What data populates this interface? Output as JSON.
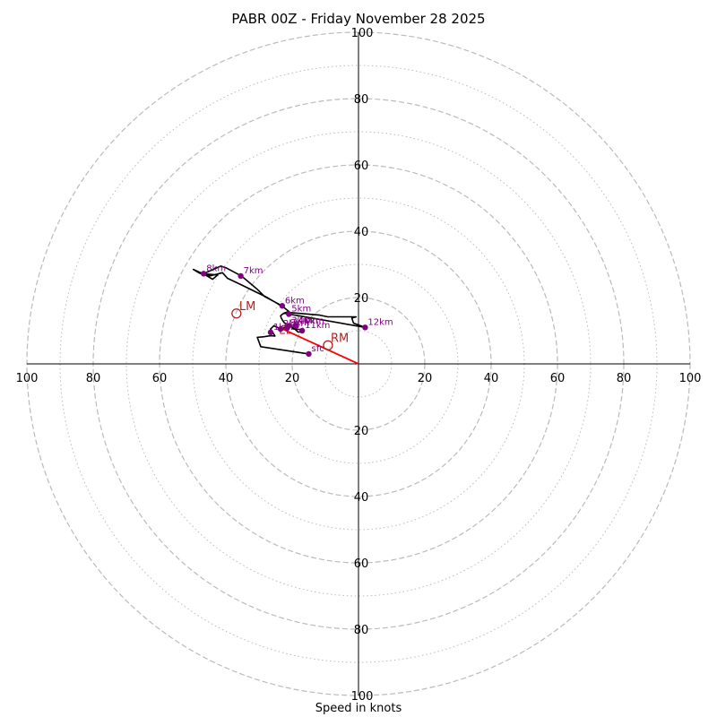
{
  "chart_data": {
    "type": "hodograph",
    "title": "PABR 00Z - Friday November 28 2025",
    "xlabel": "Speed in knots",
    "range": [
      -100,
      100
    ],
    "rings_major": [
      20,
      40,
      60,
      80,
      100
    ],
    "rings_minor": [
      10,
      30,
      50,
      70,
      90
    ],
    "tick_labels": {
      "x": [
        "100",
        "80",
        "60",
        "40",
        "20",
        "20",
        "40",
        "60",
        "80",
        "100"
      ],
      "x_values": [
        -100,
        -80,
        -60,
        -40,
        -20,
        20,
        40,
        60,
        80,
        100
      ],
      "y": [
        "100",
        "80",
        "60",
        "40",
        "20",
        "20",
        "40",
        "60",
        "80",
        "100"
      ],
      "y_values": [
        100,
        80,
        60,
        40,
        20,
        -20,
        -40,
        -60,
        -80,
        -100
      ]
    },
    "wind_profile": [
      [
        -15,
        3
      ],
      [
        -29.5,
        5.2
      ],
      [
        -30.5,
        8.0
      ],
      [
        -28.5,
        8.2
      ],
      [
        -26.5,
        8.5
      ],
      [
        -25.2,
        8.4
      ],
      [
        -26.5,
        10.5
      ],
      [
        -25.5,
        11.5
      ],
      [
        -23.5,
        10.5
      ],
      [
        -22.0,
        11.0
      ],
      [
        -21.0,
        12.0
      ],
      [
        -20.3,
        11.5
      ],
      [
        -19.8,
        10.6
      ],
      [
        -18.8,
        10.4
      ],
      [
        -17.6,
        10.4
      ],
      [
        -16.8,
        9.6
      ],
      [
        -18.2,
        9.6
      ],
      [
        -19.8,
        11.0
      ],
      [
        -21.3,
        11.8
      ],
      [
        -22.3,
        12.3
      ],
      [
        -22.8,
        13.0
      ],
      [
        -23.3,
        13.8
      ],
      [
        -23.5,
        14.5
      ],
      [
        -22.8,
        15.1
      ],
      [
        -21.3,
        15.5
      ],
      [
        -17.3,
        15.2
      ],
      [
        -11.7,
        14.7
      ],
      [
        -9.3,
        14.2
      ],
      [
        -0.7,
        14.2
      ],
      [
        -2.0,
        13.8
      ],
      [
        -1.5,
        12.3
      ],
      [
        2.0,
        11.0
      ],
      [
        -22.5,
        15.3
      ],
      [
        -21.0,
        15.8
      ],
      [
        -22.5,
        17.0
      ],
      [
        -27.5,
        20.0
      ],
      [
        -35.3,
        23.8
      ],
      [
        -39.5,
        25.8
      ],
      [
        -41.0,
        27.5
      ],
      [
        -44.8,
        26.5
      ],
      [
        -47.8,
        27.3
      ],
      [
        -49.8,
        28.5
      ],
      [
        -46.5,
        27.0
      ],
      [
        -44.0,
        25.5
      ],
      [
        -42.5,
        26.8
      ],
      [
        -46.7,
        27.2
      ],
      [
        -41.5,
        29.5
      ],
      [
        -40.0,
        29.0
      ],
      [
        -35.3,
        26.5
      ],
      [
        -30.5,
        22.5
      ],
      [
        -28.3,
        20.3
      ],
      [
        -23.0,
        17.5
      ]
    ],
    "height_labels": [
      {
        "label": "sfc",
        "u": -15.0,
        "v": 3.0
      },
      {
        "label": "1km",
        "u": -26.5,
        "v": 9.5
      },
      {
        "label": "2km",
        "u": -23.5,
        "v": 10.5
      },
      {
        "label": "3km",
        "u": -21.0,
        "v": 11.5
      },
      {
        "label": "4km",
        "u": -19.0,
        "v": 11.5
      },
      {
        "label": "5km",
        "u": -21.0,
        "v": 15.0
      },
      {
        "label": "6km",
        "u": -23.0,
        "v": 17.5
      },
      {
        "label": "7km",
        "u": -35.5,
        "v": 26.5
      },
      {
        "label": "8km",
        "u": -46.7,
        "v": 27.2
      },
      {
        "label": "9km",
        "u": -21.5,
        "v": 10.8
      },
      {
        "label": "10km",
        "u": -18.8,
        "v": 11.4
      },
      {
        "label": "11km",
        "u": -17.0,
        "v": 10.0
      },
      {
        "label": "12km",
        "u": 2.0,
        "v": 11.0
      }
    ],
    "storm_motion": [
      {
        "label": "LM",
        "u": -36.8,
        "v": 15.2
      },
      {
        "label": "RM",
        "u": -9.2,
        "v": 5.6
      }
    ],
    "shear_vector": {
      "from": [
        0,
        0
      ],
      "to": [
        -23.5,
        10.8
      ]
    },
    "overlap_label": {
      "text": "EL",
      "u": -24.0,
      "v": 9.6
    },
    "colors": {
      "profile": "#000000",
      "markers": "#800080",
      "storm": "#b22222",
      "shear": "#ff0000",
      "grid": "#bbbbbb"
    }
  }
}
